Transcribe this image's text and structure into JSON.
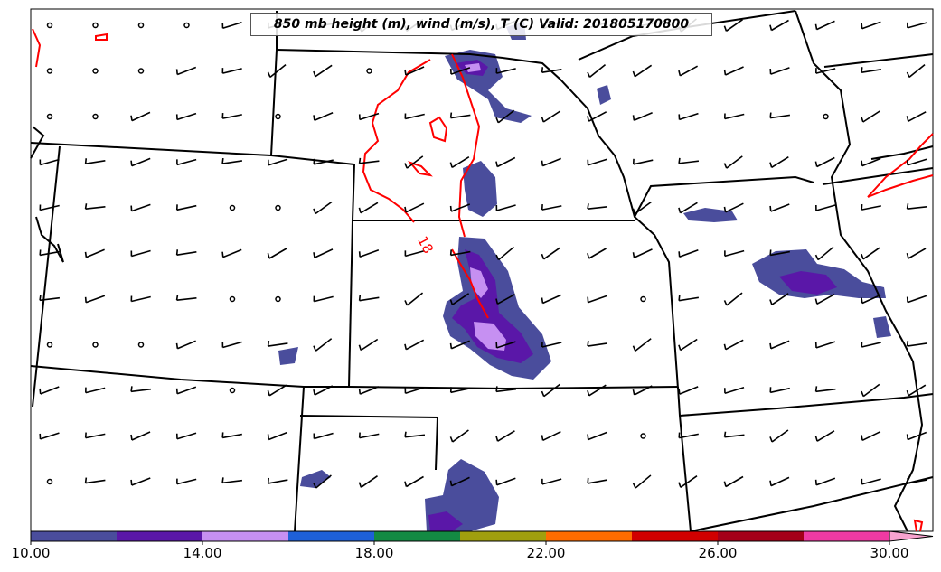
{
  "title": "850 mb height (m), wind (m/s), T (C) Valid: 201805170800",
  "contour_label": "18",
  "colorbar": {
    "min": 10,
    "max": 30,
    "extend": "max",
    "colors": [
      "#4a4d9c",
      "#5a17a8",
      "#c690f2",
      "#1e60d8",
      "#138a43",
      "#a09f0e",
      "#ff6c00",
      "#d10000",
      "#a40019",
      "#ef3aa3"
    ],
    "extend_color": "#f7a3cf",
    "ticks": [
      "10.00",
      "14.00",
      "18.00",
      "22.00",
      "26.00",
      "30.00"
    ]
  },
  "colors": {
    "temperature_contour": "#ff0000",
    "boundaries": "#000000",
    "precip_low": "#4a4d9c",
    "precip_mid": "#5a17a8",
    "precip_high": "#c690f2"
  }
}
